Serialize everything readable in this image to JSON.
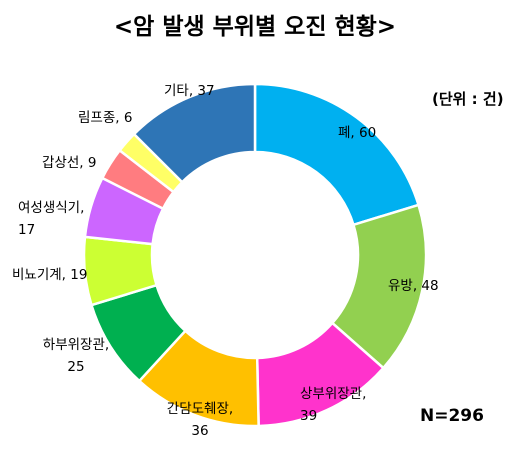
{
  "chart_data": {
    "type": "pie",
    "title": "<암 발생 부위별 오진 현황>",
    "unit_note": "(단위 : 건)",
    "total_label": "N=296",
    "slices": [
      {
        "label": "폐",
        "value": 60,
        "display": [
          "폐, 60"
        ],
        "color": "#00b0f0"
      },
      {
        "label": "유방",
        "value": 48,
        "display": [
          "유방, 48"
        ],
        "color": "#92d050"
      },
      {
        "label": "상부위장관",
        "value": 39,
        "display": [
          "상부위장관,",
          "39"
        ],
        "color": "#ff33cc"
      },
      {
        "label": "간담도췌장",
        "value": 36,
        "display": [
          "간담도췌장,",
          "36"
        ],
        "color": "#ffc000"
      },
      {
        "label": "하부위장관",
        "value": 25,
        "display": [
          "하부위장관,",
          "25"
        ],
        "color": "#00b050"
      },
      {
        "label": "비뇨기계",
        "value": 19,
        "display": [
          "비뇨기계, 19"
        ],
        "color": "#ccff33"
      },
      {
        "label": "여성생식기",
        "value": 17,
        "display": [
          "여성생식기,",
          "17"
        ],
        "color": "#cc66ff"
      },
      {
        "label": "갑상선",
        "value": 9,
        "display": [
          "갑상선, 9"
        ],
        "color": "#ff7c80"
      },
      {
        "label": "림프종",
        "value": 6,
        "display": [
          "림프종, 6"
        ],
        "color": "#ffff66"
      },
      {
        "label": "기타",
        "value": 37,
        "display": [
          "기타, 37"
        ],
        "color": "#2e75b6"
      }
    ]
  }
}
